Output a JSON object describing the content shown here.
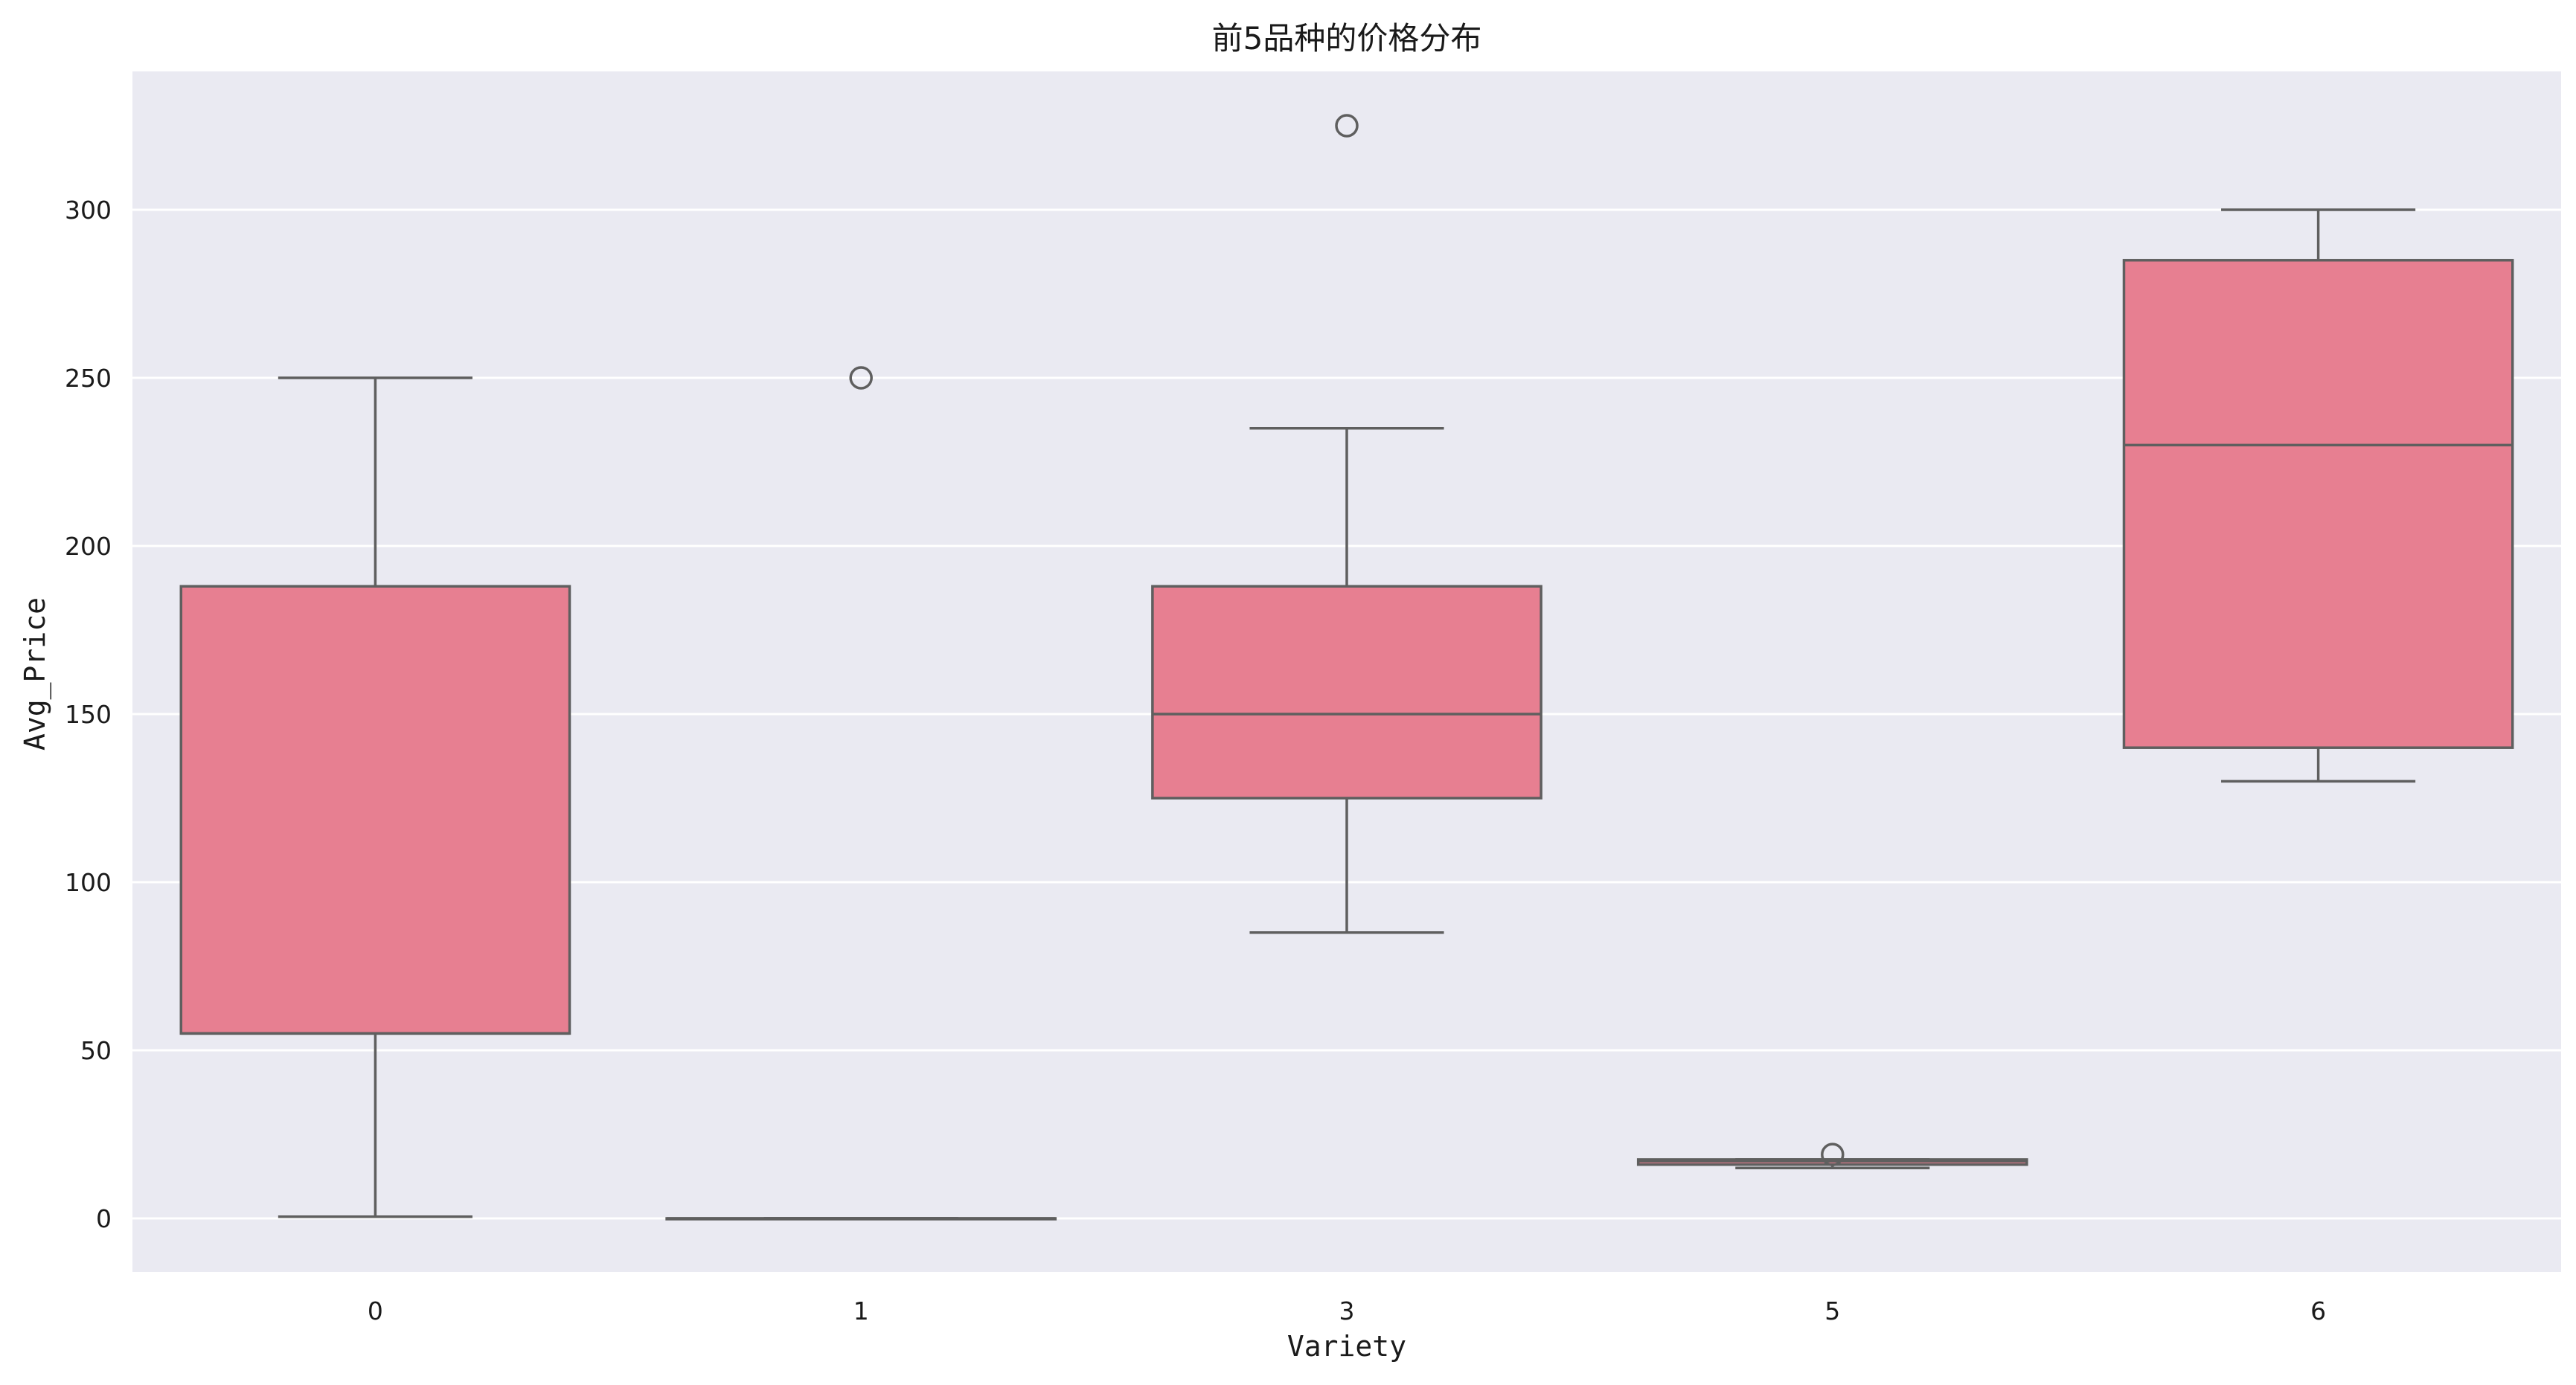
{
  "chart_data": {
    "type": "box",
    "title": "前5品种的价格分布",
    "xlabel": "Variety",
    "ylabel": "Avg_Price",
    "ylim": [
      -16,
      342
    ],
    "yticks": [
      0,
      50,
      100,
      150,
      200,
      250,
      300
    ],
    "grid": true,
    "box_color": "#e77f91",
    "line_color": "#5f5f5f",
    "plot_background": "#eaeaf2",
    "categories": [
      "0",
      "1",
      "3",
      "5",
      "6"
    ],
    "boxes": [
      {
        "category": "0",
        "whisker_low": 0.5,
        "q1": 55,
        "median": 55,
        "q3": 188,
        "whisker_high": 250,
        "outliers": []
      },
      {
        "category": "1",
        "whisker_low": 0,
        "q1": 0,
        "median": 0,
        "q3": 0,
        "whisker_high": 0,
        "outliers": [
          250
        ]
      },
      {
        "category": "3",
        "whisker_low": 85,
        "q1": 125,
        "median": 150,
        "q3": 188,
        "whisker_high": 235,
        "outliers": [
          325
        ]
      },
      {
        "category": "5",
        "whisker_low": 15,
        "q1": 16,
        "median": 17,
        "q3": 17.5,
        "whisker_high": 17.5,
        "outliers": [
          19
        ]
      },
      {
        "category": "6",
        "whisker_low": 130,
        "q1": 140,
        "median": 230,
        "q3": 285,
        "whisker_high": 300,
        "outliers": []
      }
    ]
  }
}
